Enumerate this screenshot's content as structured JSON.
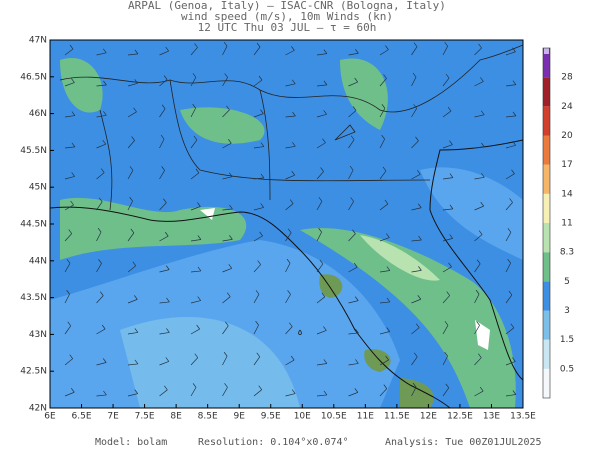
{
  "header": {
    "lines": [
      "ARPAL (Genoa, Italy)  —  ISAC-CNR (Bologna, Italy)",
      "wind speed (m/s), 10m Winds (kn)",
      "12 UTC Thu 03 JUL  —  τ = 60h"
    ]
  },
  "map": {
    "lat_labels": [
      "47N",
      "46.5N",
      "46N",
      "45.5N",
      "45N",
      "44.5N",
      "44N",
      "43.5N",
      "43N",
      "42.5N",
      "42N"
    ],
    "lon_labels": [
      "6E",
      "6.5E",
      "7E",
      "7.5E",
      "8E",
      "8.5E",
      "9E",
      "9.5E",
      "10E",
      "10.5E",
      "11E",
      "11.5E",
      "12E",
      "12.5E",
      "13E",
      "13.5E"
    ]
  },
  "colorbar": {
    "labels": [
      "0.5",
      "1.5",
      "3",
      "5",
      "8.3",
      "11",
      "14",
      "17",
      "20",
      "24",
      "28"
    ],
    "colors": [
      "#f4f8fb",
      "#c9e6f2",
      "#7cc0ea",
      "#3d8fe4",
      "#6fbf8a",
      "#b8e3b0",
      "#f6efb6",
      "#f5b66a",
      "#ea7b3c",
      "#d1402d",
      "#a0202a",
      "#7a2fb0",
      "#c9b3ec"
    ]
  },
  "footer": {
    "model": "Model: bolam",
    "resolution": "Resolution: 0.104°x0.074°",
    "analysis": "Analysis: Tue 00Z01JUL2025"
  }
}
